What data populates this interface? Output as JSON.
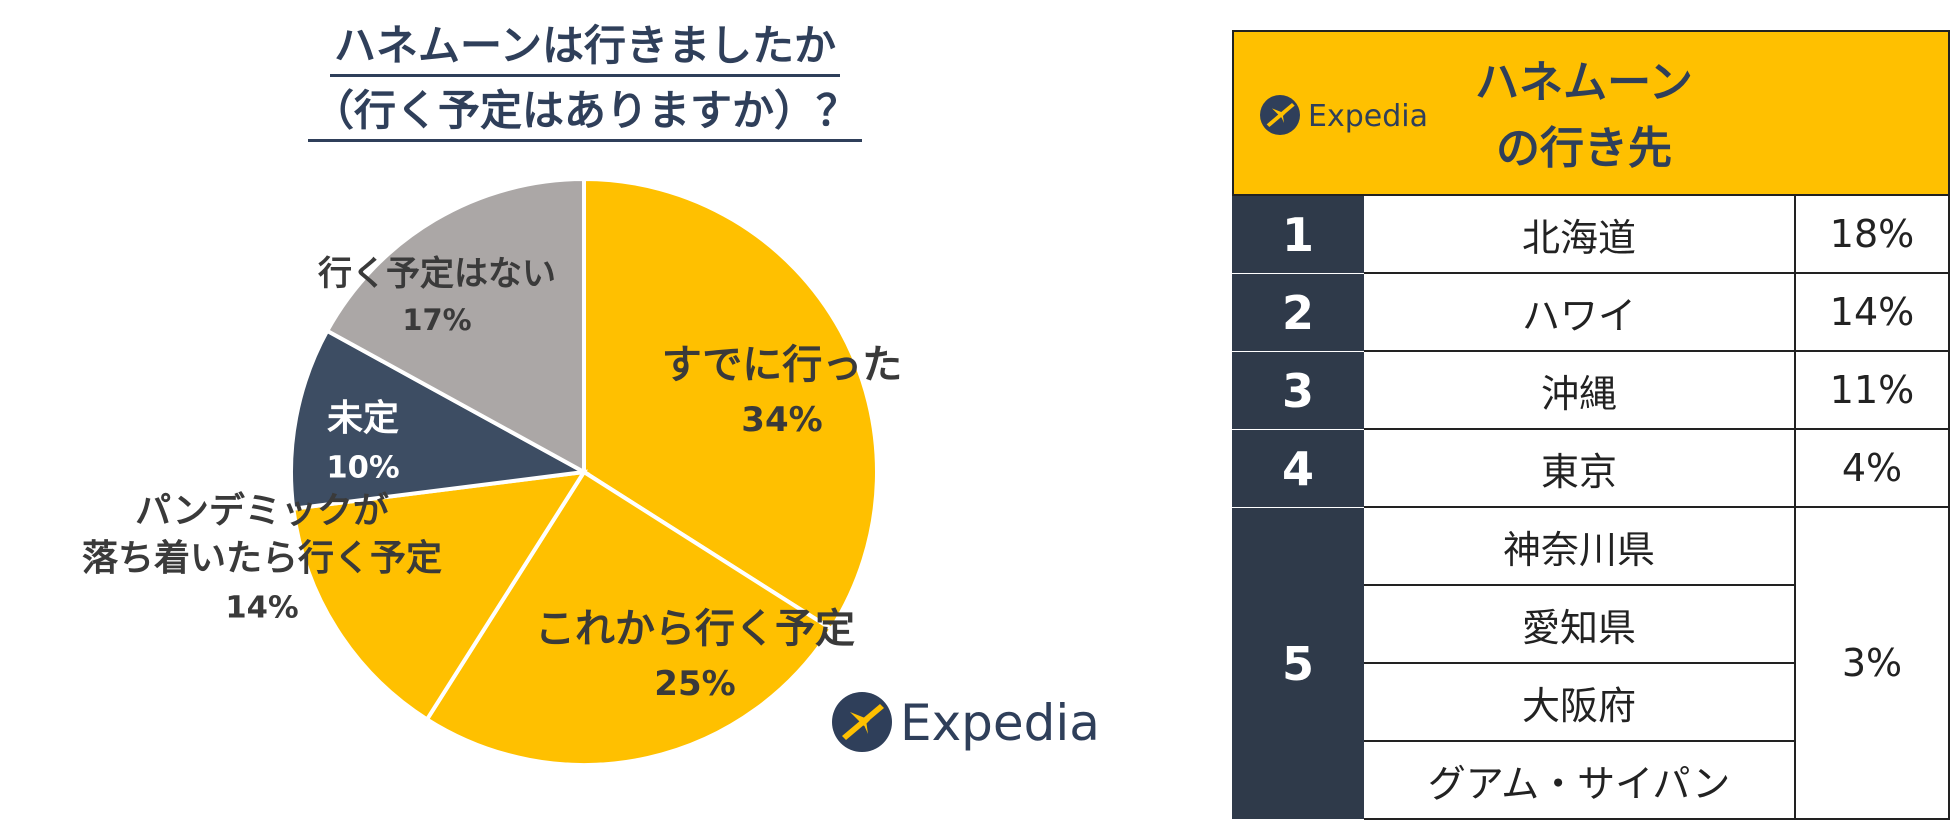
{
  "chart_data": {
    "type": "pie",
    "title_line1": "ハネムーンは行きましたか",
    "title_line2": "（行く予定はありますか）？",
    "slices": [
      {
        "label": "すでに行った",
        "value": 34,
        "display": "34%",
        "color": "#ffc000"
      },
      {
        "label": "これから行く予定",
        "value": 25,
        "display": "25%",
        "color": "#ffc000"
      },
      {
        "label": "パンデミックが\n落ち着いたら行く予定",
        "value": 14,
        "display": "14%",
        "color": "#ffc000"
      },
      {
        "label": "未定",
        "value": 10,
        "display": "10%",
        "color": "#3d4d63"
      },
      {
        "label": "行く予定はない",
        "value": 17,
        "display": "17%",
        "color": "#aba7a6"
      }
    ]
  },
  "logo": {
    "text": "Expedia",
    "color": "#2f3f5a"
  },
  "table": {
    "header": "ハネムーン\nの行き先",
    "header_color": "#ffc000",
    "rank_color": "#2f3a4a",
    "rows": [
      {
        "rank": "1",
        "destinations": [
          "北海道"
        ],
        "percent": "18%"
      },
      {
        "rank": "2",
        "destinations": [
          "ハワイ"
        ],
        "percent": "14%"
      },
      {
        "rank": "3",
        "destinations": [
          "沖縄"
        ],
        "percent": "11%"
      },
      {
        "rank": "4",
        "destinations": [
          "東京"
        ],
        "percent": "4%"
      },
      {
        "rank": "5",
        "destinations": [
          "神奈川県",
          "愛知県",
          "大阪府",
          "グアム・サイパン"
        ],
        "percent": "3%"
      }
    ]
  }
}
